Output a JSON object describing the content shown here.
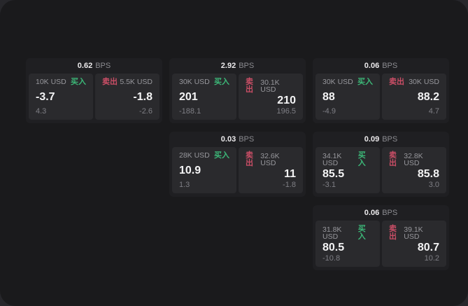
{
  "labels": {
    "bps_unit": "BPS",
    "buy": "买入",
    "sell": "卖出"
  },
  "colors": {
    "outer_bg": "#27272b",
    "page_bg": "#1a1a1c",
    "card_bg": "#1f1f22",
    "panel_bg": "#2a2a2d",
    "accent_green": "#3cb878",
    "accent_red": "#ca4e66"
  },
  "cards": [
    {
      "bps": "0.62",
      "buy": {
        "size": "10K USD",
        "price": "-3.7",
        "change": "4.3"
      },
      "sell": {
        "size": "5.5K USD",
        "price": "-1.8",
        "change": "-2.6"
      }
    },
    {
      "bps": "2.92",
      "buy": {
        "size": "30K USD",
        "price": "201",
        "change": "-188.1"
      },
      "sell": {
        "size": "30.1K USD",
        "price": "210",
        "change": "196.5"
      }
    },
    {
      "bps": "0.06",
      "buy": {
        "size": "30K USD",
        "price": "88",
        "change": "-4.9"
      },
      "sell": {
        "size": "30K USD",
        "price": "88.2",
        "change": "4.7"
      }
    },
    {
      "bps": "0.03",
      "buy": {
        "size": "28K USD",
        "price": "10.9",
        "change": "1.3"
      },
      "sell": {
        "size": "32.6K USD",
        "price": "11",
        "change": "-1.8"
      }
    },
    {
      "bps": "0.09",
      "buy": {
        "size": "34.1K USD",
        "price": "85.5",
        "change": "-3.1"
      },
      "sell": {
        "size": "32.8K USD",
        "price": "85.8",
        "change": "3.0"
      }
    },
    {
      "bps": "0.06",
      "buy": {
        "size": "31.8K USD",
        "price": "80.5",
        "change": "-10.8"
      },
      "sell": {
        "size": "39.1K USD",
        "price": "80.7",
        "change": "10.2"
      }
    }
  ]
}
